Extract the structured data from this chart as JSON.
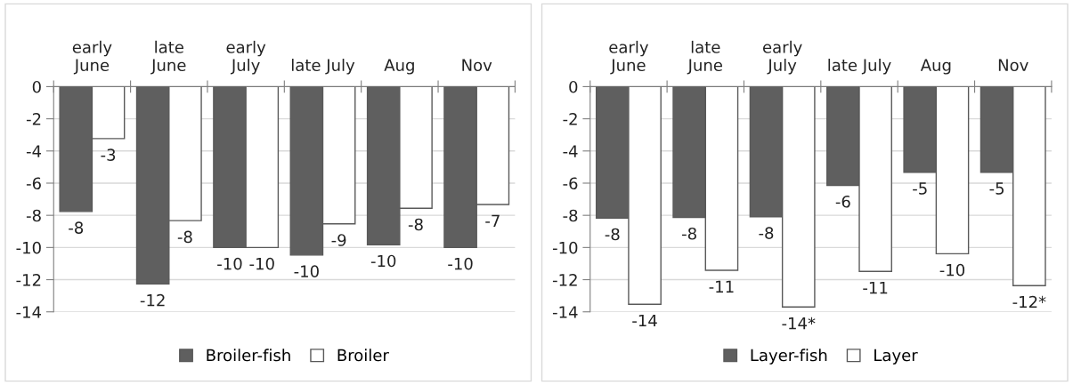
{
  "chart_data": [
    {
      "type": "bar",
      "categories": [
        "early\nJune",
        "late\nJune",
        "early\nJuly",
        "late July",
        "Aug",
        "Nov"
      ],
      "ylim": [
        -14,
        0
      ],
      "yticks": [
        0,
        -2,
        -4,
        -6,
        -8,
        -10,
        -12,
        -14
      ],
      "grid": "y",
      "legend": "bottom",
      "series": [
        {
          "name": "Broiler-fish",
          "color": "#5f5f5f",
          "values": [
            -7.76,
            -12.27,
            -10.0,
            -10.47,
            -9.83,
            -10.0
          ],
          "value_labels": [
            "-8",
            "-12",
            "-10",
            "-10",
            "-10",
            "-10"
          ]
        },
        {
          "name": "Broiler",
          "color": "#ffffff",
          "values": [
            -3.23,
            -8.33,
            -10.0,
            -8.53,
            -7.56,
            -7.33
          ],
          "value_labels": [
            "-3",
            "-8",
            "-10",
            "-9",
            "-8",
            "-7"
          ]
        }
      ]
    },
    {
      "type": "bar",
      "categories": [
        "early\nJune",
        "late\nJune",
        "early\nJuly",
        "late July",
        "Aug",
        "Nov"
      ],
      "ylim": [
        -14,
        0
      ],
      "yticks": [
        0,
        -2,
        -4,
        -6,
        -8,
        -10,
        -12,
        -14
      ],
      "grid": "y",
      "legend": "bottom",
      "series": [
        {
          "name": "Layer-fish",
          "color": "#5f5f5f",
          "values": [
            -8.17,
            -8.13,
            -8.09,
            -6.14,
            -5.32,
            -5.32
          ],
          "value_labels": [
            "-8",
            "-8",
            "-8",
            "-6",
            "-5",
            "-5"
          ]
        },
        {
          "name": "Layer",
          "color": "#ffffff",
          "values": [
            -13.53,
            -11.42,
            -13.7,
            -11.49,
            -10.39,
            -12.37
          ],
          "value_labels": [
            "-14",
            "-11",
            "-14*",
            "-11",
            "-10",
            "-12*"
          ]
        }
      ]
    }
  ]
}
